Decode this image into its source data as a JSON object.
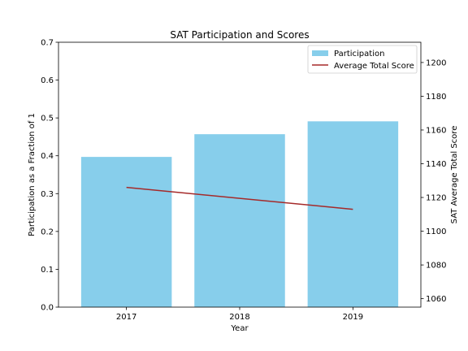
{
  "chart_data": {
    "type": "bar",
    "title": "SAT Participation and Scores",
    "xlabel": "Year",
    "ylabel": "Participation as a Fraction of 1",
    "y2label": "SAT Average Total Score",
    "categories": [
      "2017",
      "2018",
      "2019"
    ],
    "ylim": [
      0,
      0.7
    ],
    "yticks": [
      "0.0",
      "0.1",
      "0.2",
      "0.3",
      "0.4",
      "0.5",
      "0.6",
      "0.7"
    ],
    "y2lim": [
      1055,
      1212
    ],
    "y2ticks": [
      "1060",
      "1080",
      "1100",
      "1120",
      "1140",
      "1160",
      "1180",
      "1200"
    ],
    "grid": false,
    "legend_position": "top-right",
    "series": [
      {
        "name": "Participation",
        "kind": "bar",
        "axis": "left",
        "color": "#87ceeb",
        "values": [
          0.397,
          0.457,
          0.491
        ]
      },
      {
        "name": "Average Total Score",
        "kind": "line",
        "axis": "right",
        "color": "#a52a2a",
        "values": [
          1126,
          1119.5,
          1113
        ]
      }
    ]
  }
}
